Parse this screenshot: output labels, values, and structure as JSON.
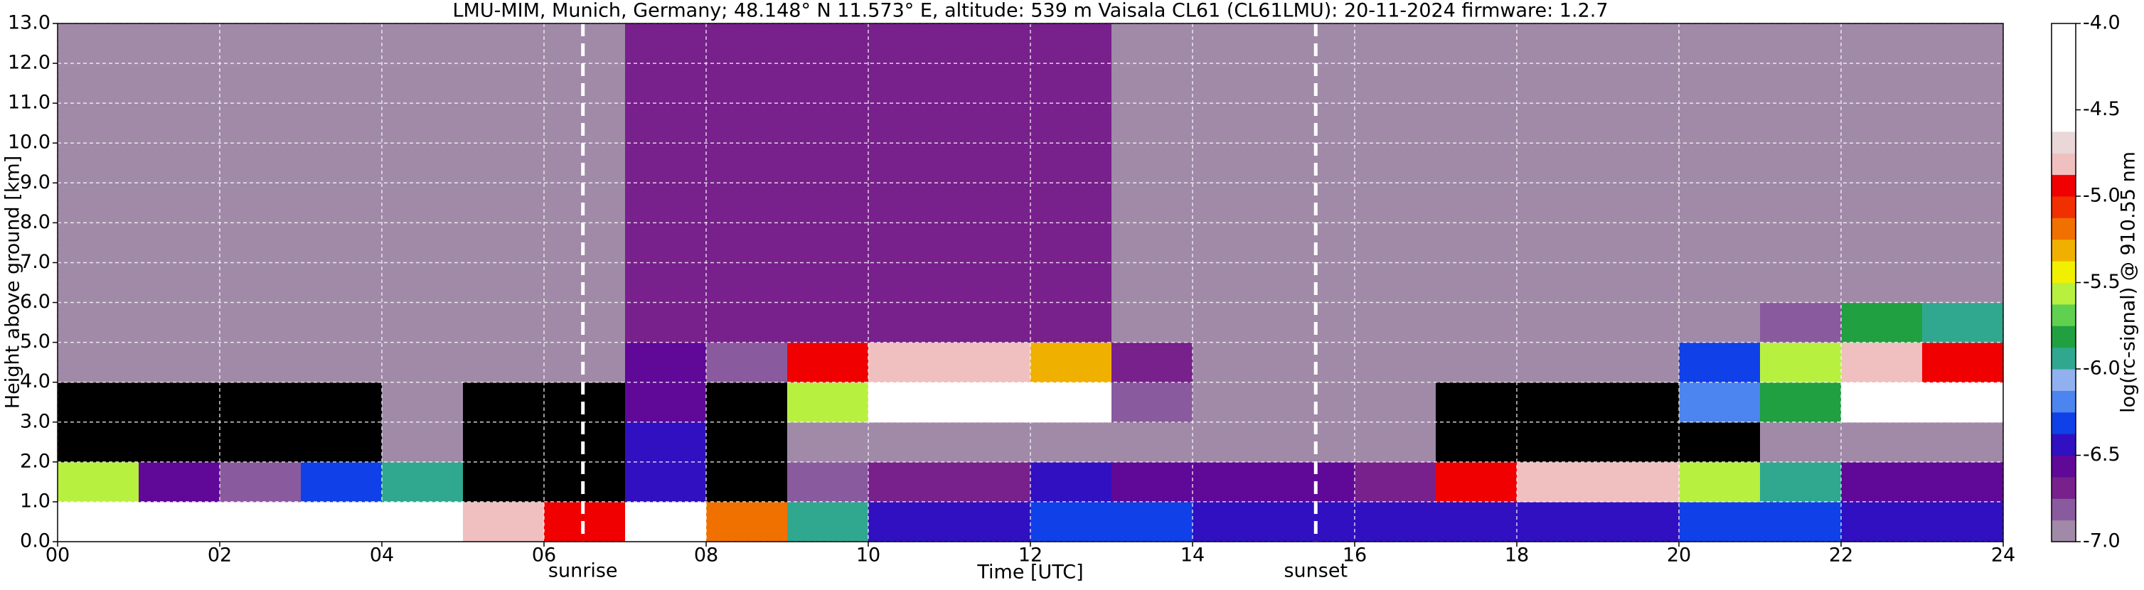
{
  "chart_data": {
    "type": "heatmap",
    "title": "LMU-MIM, Munich, Germany; 48.148° N 11.573° E, altitude: 539 m    Vaisala CL61 (CL61LMU): 20-11-2024    firmware: 1.2.7",
    "xlabel": "Time [UTC]",
    "ylabel": "Height above ground [km]",
    "xlim": [
      0,
      24
    ],
    "ylim": [
      0,
      13
    ],
    "xticks": [
      {
        "value": 0,
        "label": "00"
      },
      {
        "value": 2,
        "label": "02"
      },
      {
        "value": 4,
        "label": "04"
      },
      {
        "value": 6,
        "label": "06"
      },
      {
        "value": 8,
        "label": "08"
      },
      10,
      12,
      14,
      16,
      18,
      20,
      22,
      24
    ],
    "yticks": [
      {
        "value": 0,
        "label": "0.0"
      },
      {
        "value": 1,
        "label": "1.0"
      },
      {
        "value": 2,
        "label": "2.0"
      },
      {
        "value": 3,
        "label": "3.0"
      },
      {
        "value": 4,
        "label": "4.0"
      },
      {
        "value": 5,
        "label": "5.0"
      },
      {
        "value": 6,
        "label": "6.0"
      },
      {
        "value": 7,
        "label": "7.0"
      },
      {
        "value": 8,
        "label": "8.0"
      },
      {
        "value": 9,
        "label": "9.0"
      },
      {
        "value": 10,
        "label": "10.0"
      },
      {
        "value": 11,
        "label": "11.0"
      },
      {
        "value": 12,
        "label": "12.0"
      },
      {
        "value": 13,
        "label": "13.0"
      }
    ],
    "grid": true,
    "xbins": [
      0,
      1,
      2,
      3,
      4,
      5,
      6,
      7,
      8,
      9,
      10,
      11,
      12,
      13,
      14,
      15,
      16,
      17,
      18,
      19,
      20,
      21,
      22,
      23,
      24
    ],
    "ybins": [
      0,
      1,
      2,
      3,
      4,
      5,
      6,
      7,
      8,
      9,
      10,
      11,
      12,
      13
    ],
    "z": [
      [
        -4.3,
        -4.3,
        -4.4,
        -4.5,
        -4.4,
        -4.8,
        -4.9,
        -4.4,
        -5.2,
        -6.0,
        -6.4,
        -6.4,
        -6.3,
        -6.3,
        -6.4,
        -6.4,
        -6.4,
        -6.4,
        -6.4,
        -6.4,
        -6.3,
        -6.3,
        -6.4,
        -6.4
      ],
      [
        -5.6,
        -6.6,
        -6.8,
        -6.3,
        -6.0,
        -7.2,
        -7.2,
        -6.5,
        -7.2,
        -6.8,
        -6.7,
        -6.7,
        -6.5,
        -6.6,
        -6.6,
        -6.6,
        -6.7,
        -5.0,
        -4.8,
        -4.8,
        -5.6,
        -5.9,
        -6.6,
        -6.6
      ],
      [
        -7.3,
        -7.3,
        -7.3,
        -7.3,
        -7.0,
        -7.3,
        -7.3,
        -6.5,
        -7.3,
        -6.9,
        -6.9,
        -6.9,
        -6.9,
        -6.9,
        -6.9,
        -6.9,
        -7.0,
        -7.2,
        -7.2,
        -7.2,
        -7.1,
        -7.0,
        -6.9,
        -6.9
      ],
      [
        -7.3,
        -7.3,
        -7.3,
        -7.3,
        -7.0,
        -7.3,
        -7.3,
        -6.6,
        -7.1,
        -5.6,
        -4.3,
        -4.3,
        -4.6,
        -6.8,
        -6.9,
        -6.9,
        -7.0,
        -7.1,
        -7.1,
        -7.1,
        -6.2,
        -5.8,
        -4.5,
        -4.4
      ],
      [
        -6.9,
        -6.9,
        -6.9,
        -6.9,
        -6.9,
        -6.9,
        -6.9,
        -6.6,
        -6.8,
        -5.0,
        -4.8,
        -4.8,
        -5.3,
        -6.7,
        -6.9,
        -6.9,
        -6.9,
        -6.9,
        -6.9,
        -6.9,
        -6.3,
        -5.6,
        -4.8,
        -5.0
      ],
      [
        -6.9,
        -6.9,
        -6.9,
        -6.9,
        -6.9,
        -6.9,
        -6.9,
        -6.7,
        -6.7,
        -6.7,
        -6.7,
        -6.7,
        -6.7,
        -6.9,
        -6.9,
        -6.9,
        -6.9,
        -6.9,
        -6.9,
        -6.9,
        -6.9,
        -6.8,
        -5.8,
        -6.0
      ],
      [
        -6.9,
        -6.9,
        -6.9,
        -6.9,
        -6.9,
        -6.9,
        -6.9,
        -6.7,
        -6.7,
        -6.7,
        -6.7,
        -6.7,
        -6.7,
        -6.9,
        -6.9,
        -6.9,
        -6.9,
        -6.9,
        -6.9,
        -6.9,
        -6.9,
        -6.9,
        -6.9,
        -6.9
      ],
      [
        -6.9,
        -6.9,
        -6.9,
        -6.9,
        -6.9,
        -6.9,
        -6.9,
        -6.7,
        -6.7,
        -6.7,
        -6.7,
        -6.7,
        -6.7,
        -6.9,
        -6.9,
        -6.9,
        -6.9,
        -6.9,
        -6.9,
        -6.9,
        -6.9,
        -6.9,
        -6.9,
        -6.9
      ],
      [
        -6.9,
        -6.9,
        -6.9,
        -6.9,
        -6.9,
        -6.9,
        -6.9,
        -6.7,
        -6.7,
        -6.7,
        -6.7,
        -6.7,
        -6.7,
        -6.9,
        -6.9,
        -6.9,
        -6.9,
        -6.9,
        -6.9,
        -6.9,
        -6.9,
        -6.9,
        -6.9,
        -6.9
      ],
      [
        -6.9,
        -6.9,
        -6.9,
        -6.9,
        -6.9,
        -6.9,
        -6.9,
        -6.7,
        -6.7,
        -6.7,
        -6.7,
        -6.7,
        -6.7,
        -6.9,
        -6.9,
        -6.9,
        -6.9,
        -6.9,
        -6.9,
        -6.9,
        -6.9,
        -6.9,
        -6.9,
        -6.9
      ],
      [
        -6.9,
        -6.9,
        -6.9,
        -6.9,
        -6.9,
        -6.9,
        -6.9,
        -6.7,
        -6.7,
        -6.7,
        -6.7,
        -6.7,
        -6.7,
        -6.9,
        -6.9,
        -6.9,
        -6.9,
        -6.9,
        -6.9,
        -6.9,
        -6.9,
        -6.9,
        -6.9,
        -6.9
      ],
      [
        -6.9,
        -6.9,
        -6.9,
        -6.9,
        -6.9,
        -6.9,
        -6.9,
        -6.7,
        -6.7,
        -6.7,
        -6.7,
        -6.7,
        -6.7,
        -6.9,
        -6.9,
        -6.9,
        -6.9,
        -6.9,
        -6.9,
        -6.9,
        -6.9,
        -6.9,
        -6.9,
        -6.9
      ],
      [
        -6.9,
        -6.9,
        -6.9,
        -6.9,
        -6.9,
        -6.9,
        -6.9,
        -6.7,
        -6.7,
        -6.7,
        -6.7,
        -6.7,
        -6.7,
        -6.9,
        -6.9,
        -6.9,
        -6.9,
        -6.9,
        -6.9,
        -6.9,
        -6.9,
        -6.9,
        -6.9,
        -6.9
      ]
    ],
    "annotations": [
      {
        "text": "sunrise",
        "x": 6.48
      },
      {
        "text": "sunset",
        "x": 15.52
      }
    ],
    "colorbar": {
      "label": "log(rc-signal) @ 910.55 nm",
      "lim": [
        -7,
        -4
      ],
      "ticks": [
        {
          "value": -4,
          "label": "-4.0"
        },
        -4.5,
        {
          "value": -5,
          "label": "-5.0"
        },
        -5.5,
        {
          "value": -6,
          "label": "-6.0"
        },
        -6.5,
        {
          "value": -7,
          "label": "-7.0"
        }
      ],
      "under_color": "#000000",
      "colors": [
        "#a08aa8",
        "#8a5a9e",
        "#78208c",
        "#600898",
        "#3010c0",
        "#1040e8",
        "#4c84f0",
        "#90b0f0",
        "#30a890",
        "#20a040",
        "#60d050",
        "#b8f040",
        "#f0f000",
        "#f0b000",
        "#f07000",
        "#f03000",
        "#f00000",
        "#f0c0c0",
        "#ead8d8",
        "#ffffff",
        "#ffffff",
        "#ffffff",
        "#ffffff",
        "#ffffff"
      ]
    }
  }
}
